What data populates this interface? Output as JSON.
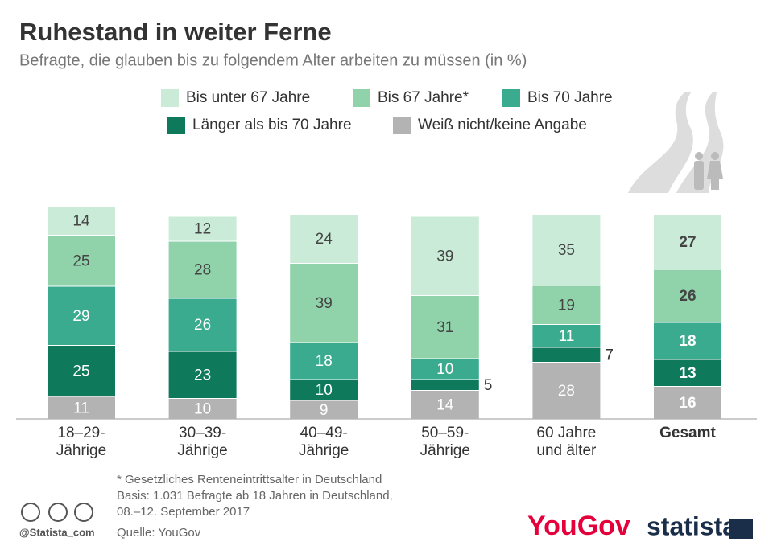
{
  "chart_data": {
    "type": "stacked-bar",
    "title": "Ruhestand in weiter Ferne",
    "subtitle": "Befragte, die glauben bis zu folgendem Alter arbeiten zu müssen (in %)",
    "categories": [
      "18–29-Jährige",
      "30–39-Jährige",
      "40–49-Jährige",
      "50–59-Jährige",
      "60 Jahre und älter",
      "Gesamt"
    ],
    "series": [
      {
        "name": "Bis unter 67 Jahre",
        "color": "#c9ebd7",
        "values": [
          14,
          12,
          24,
          39,
          35,
          27
        ]
      },
      {
        "name": "Bis 67 Jahre*",
        "color": "#90d3ab",
        "values": [
          25,
          28,
          39,
          31,
          19,
          26
        ]
      },
      {
        "name": "Bis 70 Jahre",
        "color": "#3aab8f",
        "values": [
          29,
          26,
          18,
          10,
          11,
          18
        ]
      },
      {
        "name": "Länger als bis 70 Jahre",
        "color": "#0e7a5b",
        "values": [
          25,
          23,
          10,
          5,
          7,
          13
        ]
      },
      {
        "name": "Weiß nicht/keine Angabe",
        "color": "#b3b3b3",
        "values": [
          11,
          10,
          9,
          14,
          28,
          16
        ]
      }
    ],
    "footnote": [
      "* Gesetzliches Renteneintrittsalter in Deutschland",
      "Basis: 1.031 Befragte ab 18 Jahren in Deutschland,",
      "08.–12. September 2017"
    ],
    "source": "Quelle: YouGov",
    "handle": "@Statista_com",
    "brand_left": "YouGov",
    "brand_right": "statista"
  }
}
